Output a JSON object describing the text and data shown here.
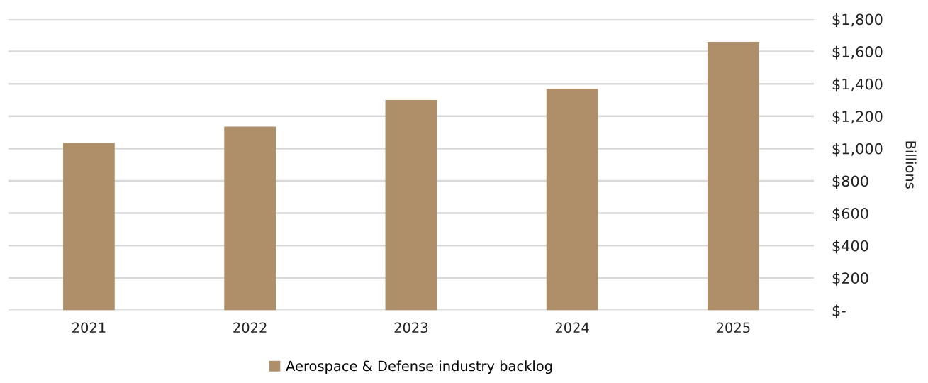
{
  "chart_data": {
    "type": "bar",
    "categories": [
      "2021",
      "2022",
      "2023",
      "2024",
      "2025"
    ],
    "series": [
      {
        "name": "Aerospace & Defense industry backlog",
        "color": "#ae8f69",
        "values": [
          1035,
          1135,
          1300,
          1370,
          1660
        ]
      }
    ],
    "ylabel": "Billions",
    "ylim": [
      0,
      1800
    ],
    "yticks": [
      {
        "value": 0,
        "label": "$-"
      },
      {
        "value": 200,
        "label": "$200"
      },
      {
        "value": 400,
        "label": "$400"
      },
      {
        "value": 600,
        "label": "$600"
      },
      {
        "value": 800,
        "label": "$800"
      },
      {
        "value": 1000,
        "label": "$1,000"
      },
      {
        "value": 1200,
        "label": "$1,200"
      },
      {
        "value": 1400,
        "label": "$1,400"
      },
      {
        "value": 1600,
        "label": "$1,600"
      },
      {
        "value": 1800,
        "label": "$1,800"
      }
    ],
    "grid": "y",
    "legend": "bottom"
  }
}
